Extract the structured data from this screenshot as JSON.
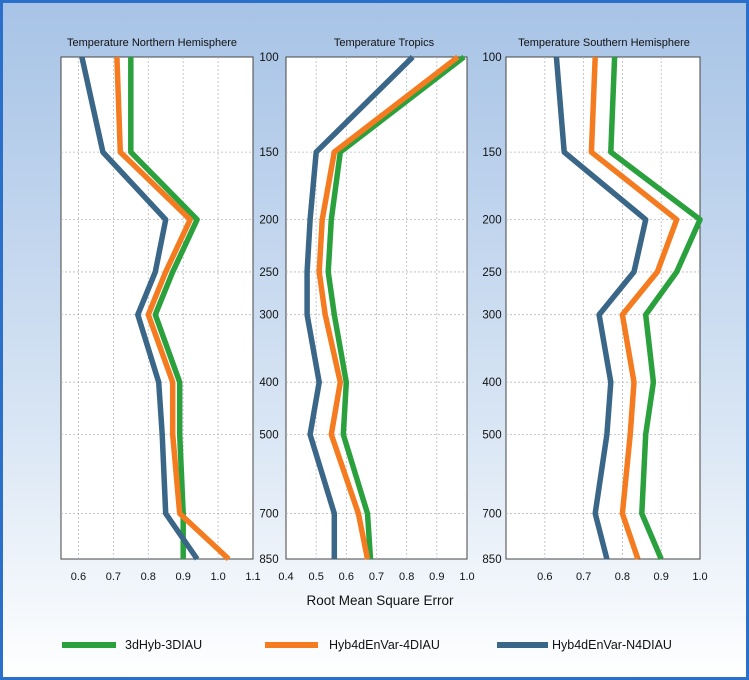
{
  "colors": {
    "bg_top": "#a7c3e6",
    "bg_bottom": "#ffffff",
    "frame": "#2a6fc9",
    "grid": "#b9b9b9",
    "panel_fill": "#ffffff"
  },
  "chart_data": {
    "type": "line",
    "orientation": "profile",
    "xlabel": "Root Mean Square Error",
    "pressure_levels": [
      100,
      150,
      200,
      250,
      300,
      400,
      500,
      700,
      850
    ],
    "y_axis": {
      "scale": "log",
      "inverted": true,
      "range": [
        100,
        850
      ]
    },
    "grid": true,
    "legend_position": "bottom",
    "series_meta": [
      {
        "name": "3dHyb-3DIAU",
        "color": "#2aa13c"
      },
      {
        "name": "Hyb4dEnVar-4DIAU",
        "color": "#f47b20"
      },
      {
        "name": "Hyb4dEnVar-N4DIAU",
        "color": "#3a6688"
      }
    ],
    "panels": [
      {
        "title": "Temperature Northern Hemisphere",
        "xlim": [
          0.55,
          1.1
        ],
        "xticks": [
          "0.6",
          "0.7",
          "0.8",
          "0.9",
          "1.0",
          "1.1"
        ],
        "xtick_values": [
          0.6,
          0.7,
          0.8,
          0.9,
          1.0,
          1.1
        ],
        "series": [
          {
            "name": "3dHyb-3DIAU",
            "values": [
              0.75,
              0.75,
              0.94,
              0.87,
              0.82,
              0.89,
              0.89,
              0.9,
              0.9
            ]
          },
          {
            "name": "Hyb4dEnVar-4DIAU",
            "values": [
              0.71,
              0.72,
              0.92,
              0.85,
              0.8,
              0.87,
              0.87,
              0.89,
              1.03
            ]
          },
          {
            "name": "Hyb4dEnVar-N4DIAU",
            "values": [
              0.61,
              0.67,
              0.85,
              0.82,
              0.77,
              0.83,
              0.84,
              0.85,
              0.94
            ]
          }
        ]
      },
      {
        "title": "Temperature Tropics",
        "xlim": [
          0.4,
          1.0
        ],
        "xticks": [
          "0.4",
          "0.5",
          "0.6",
          "0.7",
          "0.8",
          "0.9",
          "1.0"
        ],
        "xtick_values": [
          0.4,
          0.5,
          0.6,
          0.7,
          0.8,
          0.9,
          1.0
        ],
        "series": [
          {
            "name": "3dHyb-3DIAU",
            "values": [
              0.99,
              0.58,
              0.55,
              0.54,
              0.56,
              0.6,
              0.59,
              0.67,
              0.68
            ]
          },
          {
            "name": "Hyb4dEnVar-4DIAU",
            "values": [
              0.97,
              0.56,
              0.52,
              0.51,
              0.53,
              0.58,
              0.55,
              0.64,
              0.67
            ]
          },
          {
            "name": "Hyb4dEnVar-N4DIAU",
            "values": [
              0.82,
              0.5,
              0.48,
              0.47,
              0.47,
              0.51,
              0.48,
              0.56,
              0.56
            ]
          }
        ]
      },
      {
        "title": "Temperature Southern Hemisphere",
        "xlim": [
          0.5,
          1.0
        ],
        "xticks": [
          "0.6",
          "0.7",
          "0.8",
          "0.9",
          "1.0"
        ],
        "xtick_values": [
          0.6,
          0.7,
          0.8,
          0.9,
          1.0
        ],
        "series": [
          {
            "name": "3dHyb-3DIAU",
            "values": [
              0.78,
              0.77,
              1.0,
              0.94,
              0.86,
              0.88,
              0.86,
              0.85,
              0.9
            ]
          },
          {
            "name": "Hyb4dEnVar-4DIAU",
            "values": [
              0.73,
              0.72,
              0.94,
              0.89,
              0.8,
              0.83,
              0.82,
              0.8,
              0.84
            ]
          },
          {
            "name": "Hyb4dEnVar-N4DIAU",
            "values": [
              0.63,
              0.65,
              0.86,
              0.83,
              0.74,
              0.77,
              0.76,
              0.73,
              0.76
            ]
          }
        ]
      }
    ]
  }
}
